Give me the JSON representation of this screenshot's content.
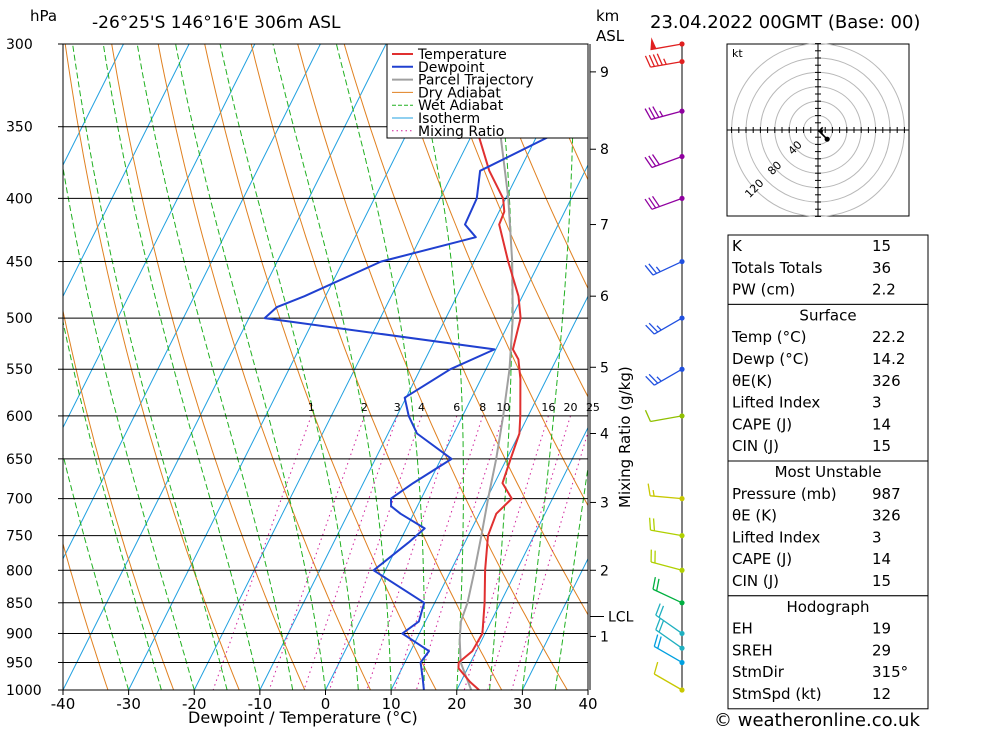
{
  "header": {
    "hpa_label": "hPa",
    "location": "-26°25'S  146°16'E  306m  ASL",
    "km_label": "km",
    "asl_label": "ASL",
    "datetime": "23.04.2022  00GMT  (Base: 00)"
  },
  "legend": [
    "Temperature",
    "Dewpoint",
    "Parcel Trajectory",
    "Dry Adiabat",
    "Wet Adiabat",
    "Isotherm",
    "Mixing Ratio"
  ],
  "colors": {
    "temperature": "#e03030",
    "dewpoint": "#2040d0",
    "parcel": "#a0a0a0",
    "dry_adiabat": "#e08020",
    "wet_adiabat": "#20b020",
    "isotherm": "#20a0e0",
    "mixing_ratio": "#d0209a"
  },
  "chart_data": {
    "type": "line",
    "xlabel": "Dewpoint / Temperature (°C)",
    "ylabel": "hPa",
    "x_ticks": [
      "-40",
      "-30",
      "-20",
      "-10",
      "0",
      "10",
      "20",
      "30",
      "40"
    ],
    "pressure_levels": [
      "300",
      "350",
      "400",
      "450",
      "500",
      "550",
      "600",
      "650",
      "700",
      "750",
      "800",
      "850",
      "900",
      "950",
      "1000"
    ],
    "km_ticks": [
      "1",
      "2",
      "3",
      "4",
      "5",
      "6",
      "7",
      "8",
      "9"
    ],
    "lcl_label": "LCL",
    "mixing_ratio_axis_label": "Mixing Ratio (g/kg)",
    "mixing_ratio_labels": [
      "1",
      "2",
      "3",
      "4",
      "6",
      "8",
      "10",
      "16",
      "20",
      "25"
    ],
    "series": [
      {
        "name": "Temperature",
        "points": [
          [
            1000,
            23.4
          ],
          [
            985,
            21.4
          ],
          [
            960,
            18.6
          ],
          [
            950,
            18.2
          ],
          [
            930,
            19.4
          ],
          [
            900,
            19.6
          ],
          [
            850,
            17.6
          ],
          [
            800,
            15.2
          ],
          [
            750,
            13.0
          ],
          [
            720,
            12.6
          ],
          [
            700,
            13.8
          ],
          [
            680,
            11.2
          ],
          [
            650,
            10.6
          ],
          [
            620,
            10.0
          ],
          [
            600,
            8.8
          ],
          [
            560,
            6.0
          ],
          [
            540,
            4.2
          ],
          [
            530,
            2.6
          ],
          [
            500,
            1.4
          ],
          [
            480,
            -0.6
          ],
          [
            450,
            -4.8
          ],
          [
            420,
            -9.0
          ],
          [
            410,
            -9.2
          ],
          [
            400,
            -10.4
          ],
          [
            380,
            -14.6
          ],
          [
            350,
            -20.0
          ],
          [
            335,
            -22.2
          ],
          [
            325,
            -22.6
          ],
          [
            300,
            -26.2
          ]
        ]
      },
      {
        "name": "Dewpoint",
        "points": [
          [
            1000,
            15.0
          ],
          [
            980,
            14.0
          ],
          [
            950,
            12.4
          ],
          [
            930,
            12.8
          ],
          [
            900,
            7.4
          ],
          [
            880,
            9.0
          ],
          [
            850,
            8.4
          ],
          [
            800,
            -1.8
          ],
          [
            760,
            1.4
          ],
          [
            740,
            2.8
          ],
          [
            720,
            -2.0
          ],
          [
            710,
            -4.0
          ],
          [
            700,
            -4.6
          ],
          [
            680,
            -2.4
          ],
          [
            650,
            1.6
          ],
          [
            620,
            -5.6
          ],
          [
            600,
            -8.2
          ],
          [
            580,
            -10.2
          ],
          [
            550,
            -5.4
          ],
          [
            530,
            -0.2
          ],
          [
            500,
            -37.6
          ],
          [
            490,
            -36.6
          ],
          [
            480,
            -33.2
          ],
          [
            450,
            -24.2
          ],
          [
            430,
            -11.6
          ],
          [
            420,
            -14.2
          ],
          [
            400,
            -14.4
          ],
          [
            380,
            -16.0
          ],
          [
            350,
            -5.8
          ],
          [
            340,
            -3.0
          ],
          [
            325,
            2.4
          ],
          [
            315,
            2.2
          ],
          [
            300,
            2.0
          ]
        ]
      },
      {
        "name": "Parcel Trajectory",
        "points": [
          [
            1000,
            22.2
          ],
          [
            950,
            18.5
          ],
          [
            910,
            16.6
          ],
          [
            880,
            15.4
          ],
          [
            850,
            15.0
          ],
          [
            800,
            13.6
          ],
          [
            750,
            12.0
          ],
          [
            700,
            10.2
          ],
          [
            650,
            8.4
          ],
          [
            600,
            6.2
          ],
          [
            550,
            3.6
          ],
          [
            500,
            0.2
          ],
          [
            450,
            -4.2
          ],
          [
            400,
            -9.6
          ],
          [
            350,
            -16.4
          ],
          [
            320,
            -20.5
          ],
          [
            300,
            -23.2
          ]
        ]
      }
    ],
    "winds": [
      {
        "p": 1000,
        "dir": 300,
        "kt": 10
      },
      {
        "p": 950,
        "dir": 300,
        "kt": 18
      },
      {
        "p": 925,
        "dir": 305,
        "kt": 22
      },
      {
        "p": 900,
        "dir": 305,
        "kt": 22
      },
      {
        "p": 850,
        "dir": 295,
        "kt": 20
      },
      {
        "p": 800,
        "dir": 285,
        "kt": 20
      },
      {
        "p": 750,
        "dir": 280,
        "kt": 18
      },
      {
        "p": 700,
        "dir": 275,
        "kt": 15
      },
      {
        "p": 600,
        "dir": 260,
        "kt": 12
      },
      {
        "p": 550,
        "dir": 240,
        "kt": 25
      },
      {
        "p": 500,
        "dir": 240,
        "kt": 25
      },
      {
        "p": 450,
        "dir": 245,
        "kt": 25
      },
      {
        "p": 400,
        "dir": 250,
        "kt": 30
      },
      {
        "p": 370,
        "dir": 250,
        "kt": 30
      },
      {
        "p": 340,
        "dir": 255,
        "kt": 35
      },
      {
        "p": 310,
        "dir": 260,
        "kt": 45
      },
      {
        "p": 300,
        "dir": 260,
        "kt": 50
      }
    ]
  },
  "hodograph": {
    "unit": "kt",
    "ring_labels": [
      "40",
      "80",
      "120"
    ]
  },
  "indices": [
    {
      "label": "K",
      "value": "15"
    },
    {
      "label": "Totals Totals",
      "value": "36"
    },
    {
      "label": "PW (cm)",
      "value": "2.2"
    }
  ],
  "surface": {
    "title": "Surface",
    "rows": [
      {
        "label": "Temp (°C)",
        "value": "22.2"
      },
      {
        "label": "Dewp (°C)",
        "value": "14.2"
      },
      {
        "label": "θE(K)",
        "value": "326"
      },
      {
        "label": "Lifted Index",
        "value": "3"
      },
      {
        "label": "CAPE (J)",
        "value": "14"
      },
      {
        "label": "CIN (J)",
        "value": "15"
      }
    ]
  },
  "most_unstable": {
    "title": "Most Unstable",
    "rows": [
      {
        "label": "Pressure (mb)",
        "value": "987"
      },
      {
        "label": "θE (K)",
        "value": "326"
      },
      {
        "label": "Lifted Index",
        "value": "3"
      },
      {
        "label": "CAPE (J)",
        "value": "14"
      },
      {
        "label": "CIN (J)",
        "value": "15"
      }
    ]
  },
  "hodograph_table": {
    "title": "Hodograph",
    "rows": [
      {
        "label": "EH",
        "value": "19"
      },
      {
        "label": "SREH",
        "value": "29"
      },
      {
        "label": "StmDir",
        "value": "315°"
      },
      {
        "label": "StmSpd (kt)",
        "value": "12"
      }
    ]
  },
  "footer": {
    "copyright": "© weatheronline.co.uk"
  }
}
